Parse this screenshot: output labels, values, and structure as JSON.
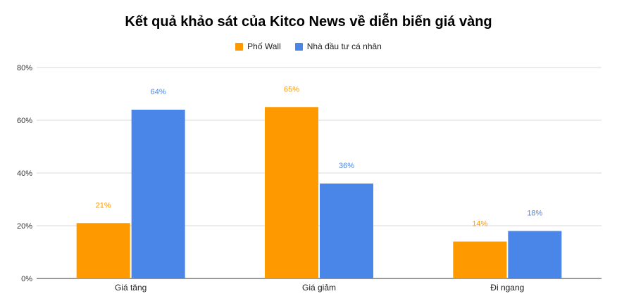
{
  "chart_data": {
    "type": "bar",
    "title": "Kết quả khảo sát của Kitco News về diễn biến giá vàng",
    "categories": [
      "Giá tăng",
      "Giá giảm",
      "Đi ngang"
    ],
    "series": [
      {
        "name": "Phố Wall",
        "values": [
          21,
          65,
          14
        ],
        "labels": [
          "21%",
          "65%",
          "14%"
        ],
        "color": "#ff9900"
      },
      {
        "name": "Nhà đầu tư cá nhân",
        "values": [
          64,
          36,
          18
        ],
        "labels": [
          "64%",
          "36%",
          "18%"
        ],
        "color": "#4a86e8"
      }
    ],
    "ylim": [
      0,
      80
    ],
    "yticks": [
      "0%",
      "20%",
      "40%",
      "60%",
      "80%"
    ],
    "grid": true,
    "legend_position": "top"
  }
}
